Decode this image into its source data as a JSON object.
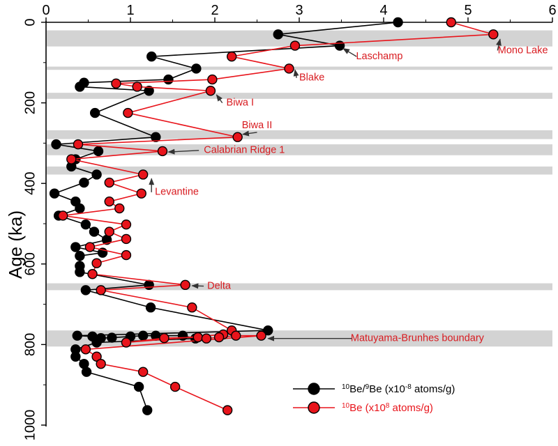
{
  "chart_data": {
    "type": "line",
    "y_axis_title": "Age (ka)",
    "x_range": [
      0,
      6
    ],
    "y_range": [
      0,
      1000
    ],
    "y_reversed": true,
    "x_ticks": [
      "0",
      "1",
      "2",
      "3",
      "4",
      "5",
      "6"
    ],
    "x_tick_values": [
      0,
      1,
      2,
      3,
      4,
      5,
      6
    ],
    "y_ticks": [
      "0",
      "200",
      "400",
      "600",
      "800",
      "1000"
    ],
    "y_tick_values": [
      0,
      200,
      400,
      600,
      800,
      1000
    ],
    "bands": [
      {
        "from": 20,
        "to": 60
      },
      {
        "from": 110,
        "to": 118
      },
      {
        "from": 175,
        "to": 190
      },
      {
        "from": 268,
        "to": 290
      },
      {
        "from": 303,
        "to": 330
      },
      {
        "from": 358,
        "to": 378
      },
      {
        "from": 648,
        "to": 665
      },
      {
        "from": 765,
        "to": 805
      }
    ],
    "series": [
      {
        "name_sup1": "10",
        "name_mid": "Be/",
        "name_sup2": "9",
        "name_mid2": "Be (x10",
        "name_sup3": "-8",
        "name_end": " atoms/g)",
        "color": "#000000",
        "points": [
          [
            4.17,
            0
          ],
          [
            2.75,
            30
          ],
          [
            3.48,
            58
          ],
          [
            1.25,
            85
          ],
          [
            1.78,
            115
          ],
          [
            1.45,
            142
          ],
          [
            0.45,
            150
          ],
          [
            0.4,
            160
          ],
          [
            1.22,
            170
          ],
          [
            0.58,
            225
          ],
          [
            1.3,
            285
          ],
          [
            0.12,
            303
          ],
          [
            0.62,
            320
          ],
          [
            0.35,
            340
          ],
          [
            0.3,
            358
          ],
          [
            0.6,
            378
          ],
          [
            0.45,
            398
          ],
          [
            0.1,
            425
          ],
          [
            0.35,
            445
          ],
          [
            0.4,
            462
          ],
          [
            0.15,
            480
          ],
          [
            0.47,
            502
          ],
          [
            0.57,
            520
          ],
          [
            0.72,
            540
          ],
          [
            0.35,
            558
          ],
          [
            0.67,
            572
          ],
          [
            0.4,
            580
          ],
          [
            0.4,
            605
          ],
          [
            0.4,
            620
          ],
          [
            1.22,
            652
          ],
          [
            0.47,
            665
          ],
          [
            1.24,
            708
          ],
          [
            2.63,
            765
          ],
          [
            0.37,
            778
          ],
          [
            0.55,
            780
          ],
          [
            0.65,
            784
          ],
          [
            0.78,
            783
          ],
          [
            1.0,
            780
          ],
          [
            1.15,
            778
          ],
          [
            1.3,
            778
          ],
          [
            1.62,
            778
          ],
          [
            1.77,
            785
          ],
          [
            0.6,
            795
          ],
          [
            0.35,
            812
          ],
          [
            0.35,
            830
          ],
          [
            0.45,
            848
          ],
          [
            0.48,
            868
          ],
          [
            1.1,
            905
          ],
          [
            1.2,
            963
          ]
        ]
      },
      {
        "name_sup1": "10",
        "name_mid": "Be (x10",
        "name_sup2": "8",
        "name_end": " atoms/g)",
        "color": "#e8141b",
        "points": [
          [
            4.8,
            0
          ],
          [
            5.3,
            30
          ],
          [
            2.95,
            58
          ],
          [
            2.2,
            85
          ],
          [
            2.88,
            115
          ],
          [
            1.97,
            142
          ],
          [
            0.83,
            152
          ],
          [
            1.08,
            160
          ],
          [
            1.95,
            170
          ],
          [
            0.97,
            225
          ],
          [
            2.27,
            285
          ],
          [
            0.38,
            303
          ],
          [
            1.38,
            320
          ],
          [
            0.3,
            340
          ],
          [
            1.15,
            378
          ],
          [
            0.75,
            398
          ],
          [
            1.13,
            425
          ],
          [
            0.75,
            445
          ],
          [
            0.87,
            462
          ],
          [
            0.2,
            480
          ],
          [
            0.95,
            502
          ],
          [
            0.75,
            520
          ],
          [
            0.95,
            538
          ],
          [
            0.52,
            558
          ],
          [
            0.95,
            578
          ],
          [
            0.6,
            598
          ],
          [
            0.55,
            625
          ],
          [
            1.65,
            652
          ],
          [
            0.65,
            665
          ],
          [
            1.73,
            708
          ],
          [
            2.2,
            765
          ],
          [
            2.1,
            775
          ],
          [
            0.95,
            795
          ],
          [
            1.4,
            784
          ],
          [
            1.8,
            782
          ],
          [
            1.9,
            785
          ],
          [
            2.05,
            782
          ],
          [
            2.25,
            778
          ],
          [
            2.55,
            778
          ],
          [
            0.47,
            812
          ],
          [
            0.6,
            830
          ],
          [
            0.65,
            848
          ],
          [
            1.15,
            868
          ],
          [
            1.53,
            905
          ],
          [
            2.15,
            963
          ]
        ]
      }
    ],
    "annotations": [
      {
        "text": "Mono Lake",
        "arrow_to": [
          5.38,
          42
        ],
        "label_at": [
          5.65,
          70
        ]
      },
      {
        "text": "Laschamp",
        "arrow_to": [
          3.52,
          65
        ],
        "label_at": [
          3.95,
          85
        ]
      },
      {
        "text": "Blake",
        "arrow_to": [
          2.95,
          118
        ],
        "label_at": [
          3.15,
          138
        ]
      },
      {
        "text": "Biwa I",
        "arrow_to": [
          2.02,
          180
        ],
        "label_at": [
          2.3,
          200
        ]
      },
      {
        "text": "Biwa II",
        "arrow_to": [
          2.33,
          278
        ],
        "label_at": [
          2.5,
          256
        ]
      },
      {
        "text": "Calabrian Ridge 1",
        "arrow_to": [
          1.45,
          322
        ],
        "label_at": [
          2.35,
          318
        ]
      },
      {
        "text": "Levantine",
        "arrow_to": [
          1.25,
          388
        ],
        "label_at": [
          1.55,
          422
        ]
      },
      {
        "text": "Delta",
        "arrow_to": [
          1.73,
          654
        ],
        "label_at": [
          2.05,
          655
        ]
      },
      {
        "text": "Matuyama-Brunhes boundary",
        "arrow_to": [
          2.63,
          785
        ],
        "label_at": [
          4.4,
          785
        ]
      }
    ]
  }
}
